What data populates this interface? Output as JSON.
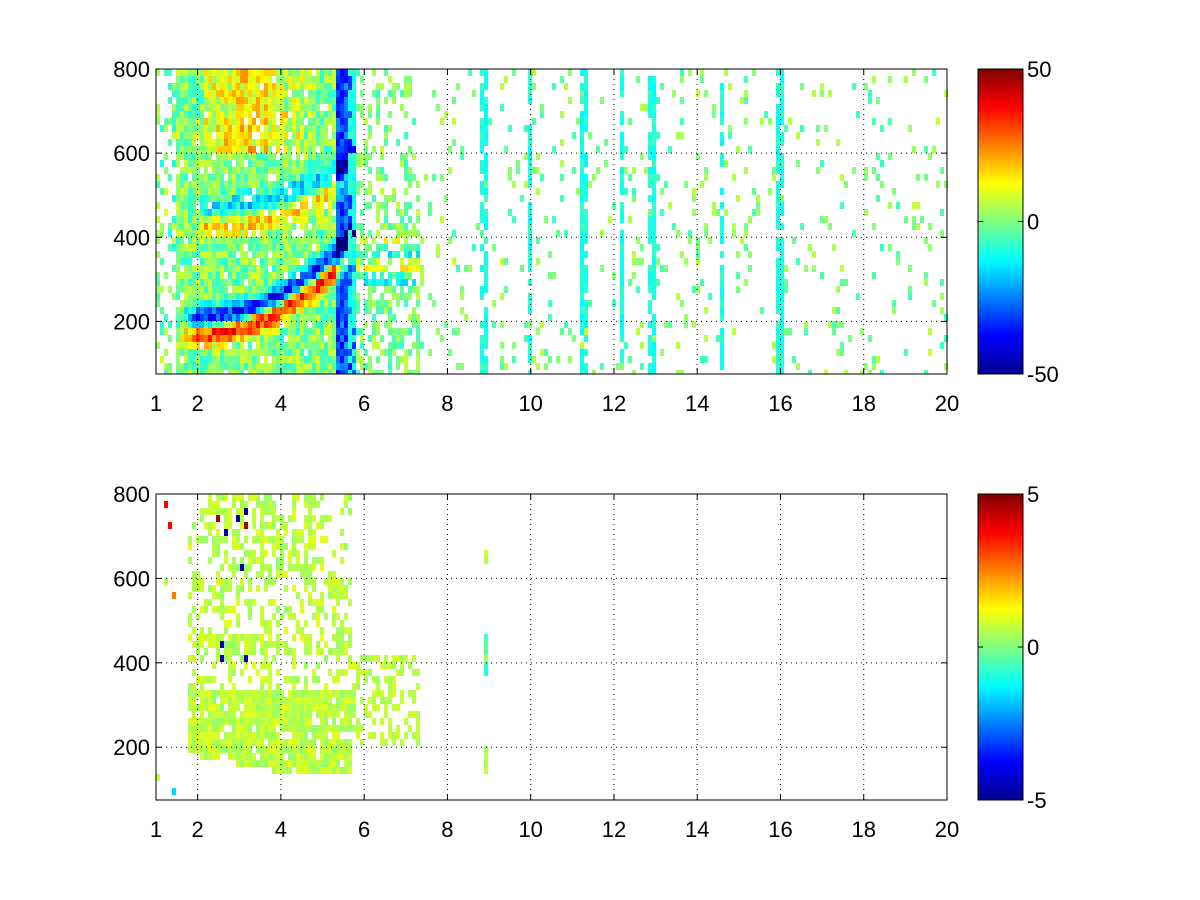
{
  "chart_data": [
    {
      "type": "heatmap",
      "title": "",
      "xlabel": "",
      "ylabel": "",
      "xlim": [
        1,
        20
      ],
      "ylim": [
        75,
        800
      ],
      "grid": true,
      "grid_style": "dotted",
      "x_ticks": [
        "1",
        "2",
        "4",
        "6",
        "8",
        "10",
        "12",
        "14",
        "16",
        "18",
        "20"
      ],
      "y_ticks": [
        "200",
        "400",
        "600",
        "800"
      ],
      "colorbar": {
        "colormap": "jet",
        "range": [
          -50,
          50
        ],
        "ticks": [
          "50",
          "0",
          "-50"
        ]
      },
      "features": [
        {
          "name": "primary-ridge",
          "x_range": [
            1.8,
            5.7
          ],
          "y_range": [
            185,
            330
          ],
          "polarity": "dipole-red-blue",
          "peak_magnitude": 45
        },
        {
          "name": "second-ridge",
          "x_range": [
            2.2,
            5.5
          ],
          "y_range": [
            430,
            630
          ],
          "polarity": "dipole-orange-blue",
          "peak_magnitude": 25
        },
        {
          "name": "upper-band",
          "x_range": [
            2.2,
            4.6
          ],
          "y_range": [
            620,
            800
          ],
          "polarity": "mostly-positive",
          "peak_magnitude": 25
        },
        {
          "name": "scattered-noise",
          "x_range": [
            5.5,
            20
          ],
          "y_range": [
            75,
            800
          ],
          "polarity": "near-zero",
          "peak_magnitude": 8
        }
      ],
      "vertical_stripes_x": [
        5.7,
        8.9,
        10.0,
        11.3,
        12.2,
        12.9,
        14.6,
        16.0
      ]
    },
    {
      "type": "heatmap",
      "title": "",
      "xlabel": "",
      "ylabel": "",
      "xlim": [
        1,
        20
      ],
      "ylim": [
        75,
        800
      ],
      "grid": true,
      "grid_style": "dotted",
      "x_ticks": [
        "1",
        "2",
        "4",
        "6",
        "8",
        "10",
        "12",
        "14",
        "16",
        "18",
        "20"
      ],
      "y_ticks": [
        "200",
        "400",
        "600",
        "800"
      ],
      "colorbar": {
        "colormap": "jet",
        "range": [
          -5,
          5
        ],
        "ticks": [
          "5",
          "0",
          "-5"
        ]
      },
      "features": [
        {
          "name": "main-cloud",
          "x_range": [
            1.8,
            5.7
          ],
          "y_range": [
            140,
            800
          ],
          "polarity": "slightly-positive",
          "peak_magnitude": 1.2
        },
        {
          "name": "tail-cloud",
          "x_range": [
            5.7,
            7.3
          ],
          "y_range": [
            200,
            420
          ],
          "polarity": "slightly-positive",
          "peak_magnitude": 0.8
        },
        {
          "name": "outlier-speckles",
          "x_range": [
            2.3,
            3.2
          ],
          "y_range": [
            320,
            800
          ],
          "polarity": "mixed-extremes",
          "peak_magnitude": 5
        }
      ],
      "vertical_stripes_x": [
        8.9
      ]
    }
  ]
}
